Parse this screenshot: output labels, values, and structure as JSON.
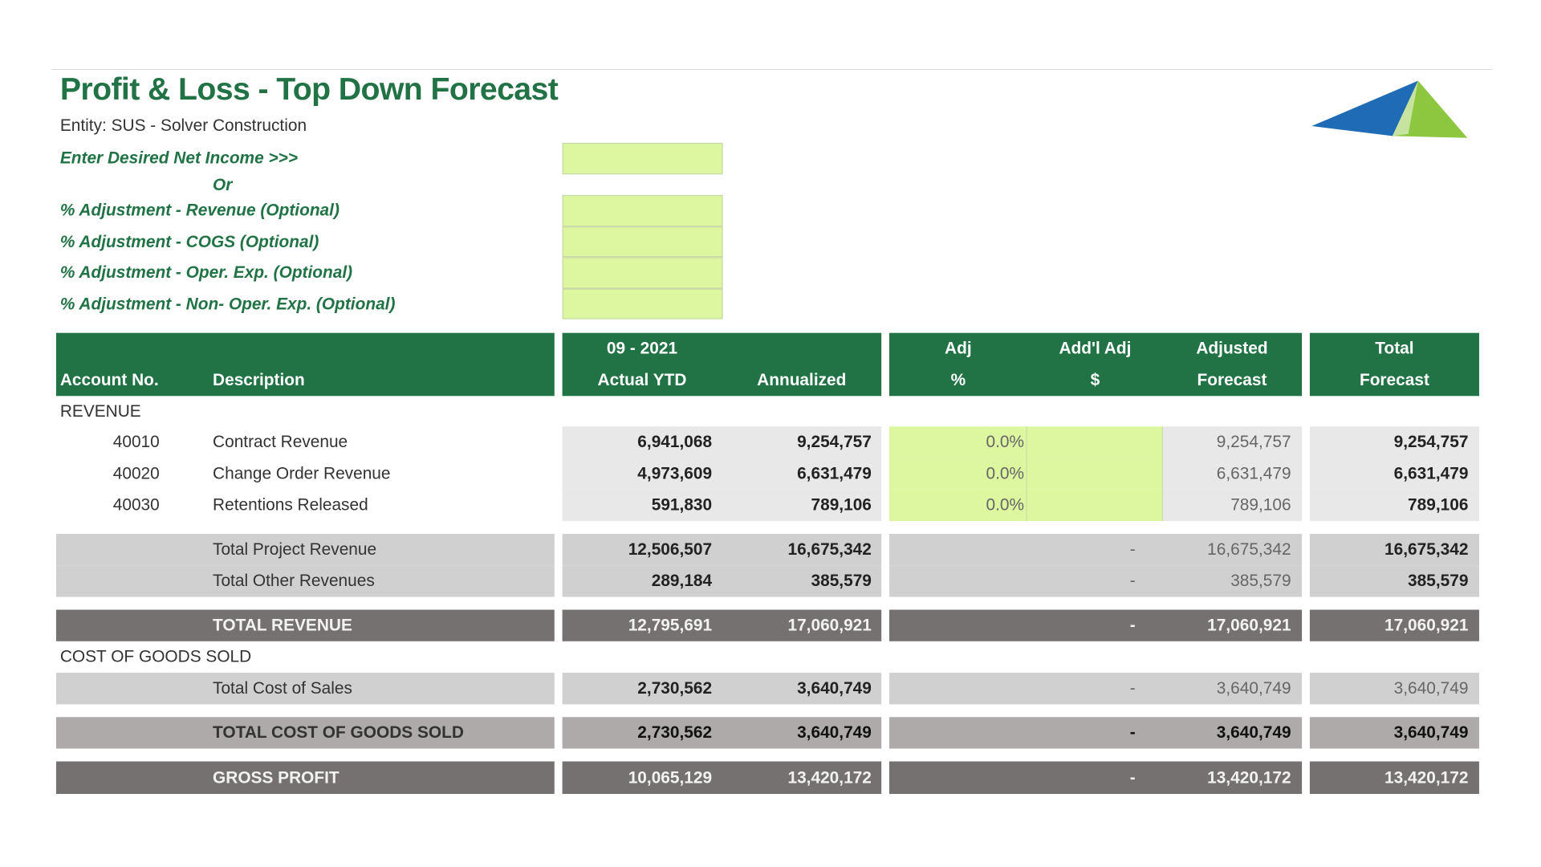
{
  "header": {
    "title": "Profit & Loss - Top Down Forecast",
    "entity": "Entity: SUS - Solver Construction"
  },
  "inputs": {
    "labels": [
      "Enter Desired Net Income  >>>",
      "% Adjustment - Revenue (Optional)",
      "% Adjustment - COGS (Optional)",
      "% Adjustment - Oper. Exp. (Optional)",
      "% Adjustment - Non- Oper. Exp. (Optional)"
    ],
    "or_label": "Or"
  },
  "table": {
    "columns": [
      {
        "line2": "Account No."
      },
      {
        "line2": "Description"
      },
      {
        "line1": "09 - 2021",
        "line2": "Actual YTD"
      },
      {
        "line2": "Annualized"
      },
      {
        "line1": "Adj",
        "line2": "%"
      },
      {
        "line1": "Add'l Adj",
        "line2": "$"
      },
      {
        "line1": "Adjusted",
        "line2": "Forecast"
      },
      {
        "line1": "Total",
        "line2": "Forecast"
      }
    ],
    "rows": [
      {
        "section": "REVENUE"
      },
      {
        "account": "40010",
        "description": "Contract Revenue",
        "actual_ytd": "6,941,068",
        "annualized": "9,254,757",
        "adj_pct": "0.0%",
        "adjusted": "9,254,757",
        "total": "9,254,757"
      },
      {
        "account": "40020",
        "description": "Change Order Revenue",
        "actual_ytd": "4,973,609",
        "annualized": "6,631,479",
        "adj_pct": "0.0%",
        "adjusted": "6,631,479",
        "total": "6,631,479"
      },
      {
        "account": "40030",
        "description": "Retentions Released",
        "actual_ytd": "591,830",
        "annualized": "789,106",
        "adj_pct": "0.0%",
        "adjusted": "789,106",
        "total": "789,106"
      },
      {
        "description": "Total Project Revenue",
        "actual_ytd": "12,506,507",
        "annualized": "16,675,342",
        "addl_adj": "-",
        "adjusted": "16,675,342",
        "total": "16,675,342"
      },
      {
        "description": "Total Other Revenues",
        "actual_ytd": "289,184",
        "annualized": "385,579",
        "addl_adj": "-",
        "adjusted": "385,579",
        "total": "385,579"
      },
      {
        "description": "TOTAL REVENUE",
        "actual_ytd": "12,795,691",
        "annualized": "17,060,921",
        "addl_adj": "-",
        "adjusted": "17,060,921",
        "total": "17,060,921"
      },
      {
        "section": "COST OF GOODS SOLD"
      },
      {
        "description": "Total Cost of Sales",
        "actual_ytd": "2,730,562",
        "annualized": "3,640,749",
        "addl_adj": "-",
        "adjusted": "3,640,749",
        "total": "3,640,749"
      },
      {
        "description": "TOTAL COST OF GOODS SOLD",
        "actual_ytd": "2,730,562",
        "annualized": "3,640,749",
        "addl_adj": "-",
        "adjusted": "3,640,749",
        "total": "3,640,749"
      },
      {
        "description": "GROSS PROFIT",
        "actual_ytd": "10,065,129",
        "annualized": "13,420,172",
        "addl_adj": "-",
        "adjusted": "13,420,172",
        "total": "13,420,172"
      }
    ]
  }
}
